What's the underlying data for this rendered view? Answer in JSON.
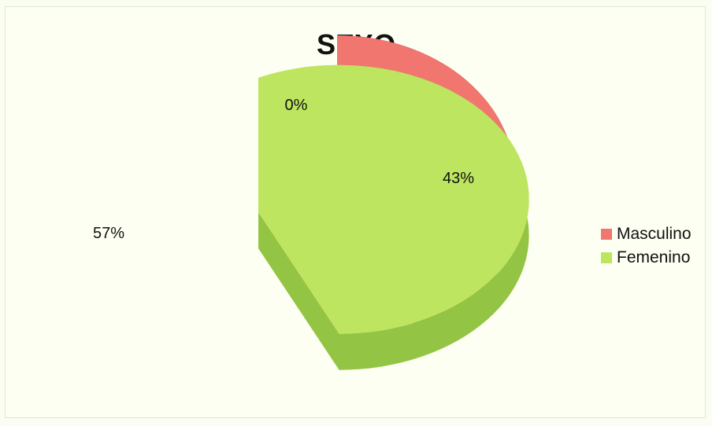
{
  "chart_data": {
    "type": "pie",
    "title": "SEXO",
    "categories": [
      "Masculino",
      "Femenino"
    ],
    "values": [
      43,
      57
    ],
    "extra_label": "0%",
    "colors": [
      "#f0766f",
      "#bde55f"
    ],
    "side_colors": [
      "#5a1f1c",
      "#94c443"
    ],
    "labels": [
      "43%",
      "57%"
    ],
    "legend_position": "right"
  }
}
